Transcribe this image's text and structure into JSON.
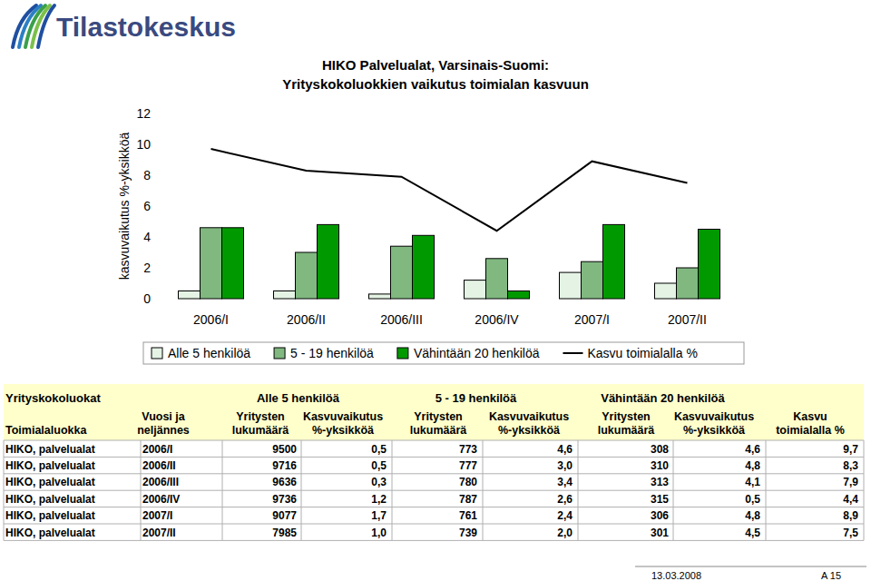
{
  "logo": {
    "text": "Tilastokeskus"
  },
  "chart_data": {
    "type": "bar",
    "title": "HIKO Palvelualat, Varsinais-Suomi:",
    "subtitle": "Yrityskokoluokkien vaikutus toimialan kasvuun",
    "y_label": "kasvuvaikutus %-yksikköä",
    "categories": [
      "2006/I",
      "2006/II",
      "2006/III",
      "2006/IV",
      "2007/I",
      "2007/II"
    ],
    "series": [
      {
        "name": "Alle 5 henkilöä",
        "color": "#e4f3e4",
        "values": [
          0.5,
          0.5,
          0.3,
          1.2,
          1.7,
          1.0
        ]
      },
      {
        "name": "5 - 19 henkilöä",
        "color": "#80b880",
        "values": [
          4.6,
          3.0,
          3.4,
          2.6,
          2.4,
          2.0
        ]
      },
      {
        "name": "Vähintään 20 henkilöä",
        "color": "#009a00",
        "values": [
          4.6,
          4.8,
          4.1,
          0.5,
          4.8,
          4.5
        ]
      },
      {
        "name": "Kasvu toimialalla %",
        "type": "line",
        "color": "#000000",
        "values": [
          9.7,
          8.3,
          7.9,
          4.4,
          8.9,
          7.5
        ]
      }
    ],
    "ylim": [
      0,
      12
    ],
    "yticks": [
      0,
      2,
      4,
      6,
      8,
      10,
      12
    ],
    "grid": false,
    "legend": "bottom"
  },
  "table": {
    "group_header": "Yrityskokoluokat",
    "groups": [
      "Alle 5 henkilöä",
      "5 - 19 henkilöä",
      "Vähintään 20 henkilöä"
    ],
    "columns": [
      [
        "Toimialaluokka"
      ],
      [
        "Vuosi ja",
        "neljännes"
      ],
      [
        "Yritysten",
        "lukumäärä"
      ],
      [
        "Kasvuvaikutus",
        "%-yksikköä"
      ],
      [
        "Yritysten",
        "lukumäärä"
      ],
      [
        "Kasvuvaikutus",
        "%-yksikköä"
      ],
      [
        "Yritysten",
        "lukumäärä"
      ],
      [
        "Kasvuvaikutus",
        "%-yksikköä"
      ],
      [
        "Kasvu",
        "toimialalla %"
      ]
    ],
    "rows": [
      [
        "HIKO, palvelualat",
        "2006/I",
        "9500",
        "0,5",
        "773",
        "4,6",
        "308",
        "4,6",
        "9,7"
      ],
      [
        "HIKO, palvelualat",
        "2006/II",
        "9716",
        "0,5",
        "777",
        "3,0",
        "310",
        "4,8",
        "8,3"
      ],
      [
        "HIKO, palvelualat",
        "2006/III",
        "9636",
        "0,3",
        "780",
        "3,4",
        "313",
        "4,1",
        "7,9"
      ],
      [
        "HIKO, palvelualat",
        "2006/IV",
        "9736",
        "1,2",
        "787",
        "2,6",
        "315",
        "0,5",
        "4,4"
      ],
      [
        "HIKO, palvelualat",
        "2007/I",
        "9077",
        "1,7",
        "761",
        "2,4",
        "306",
        "4,8",
        "8,9"
      ],
      [
        "HIKO, palvelualat",
        "2007/II",
        "7985",
        "1,0",
        "739",
        "2,0",
        "301",
        "4,5",
        "7,5"
      ]
    ]
  },
  "footer": {
    "date": "13.03.2008",
    "page": "A 15"
  }
}
